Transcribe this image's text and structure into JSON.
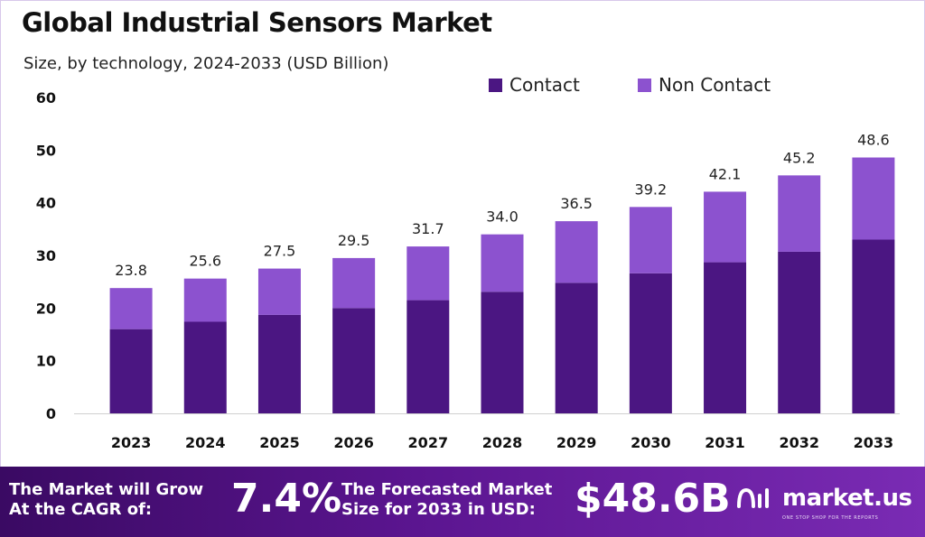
{
  "colors": {
    "contact": "#4b1682",
    "non_contact": "#8c52cf",
    "footer_start": "#3a0a63",
    "footer_end": "#7a2bb4"
  },
  "chart_data": {
    "type": "bar",
    "stacked": true,
    "title": "Global Industrial Sensors Market",
    "subtitle": "Size, by technology, 2024-2033 (USD Billion)",
    "categories": [
      "2023",
      "2024",
      "2025",
      "2026",
      "2027",
      "2028",
      "2029",
      "2030",
      "2031",
      "2032",
      "2033"
    ],
    "series": [
      {
        "name": "Contact",
        "values": [
          16.0,
          17.4,
          18.7,
          20.0,
          21.5,
          23.1,
          24.8,
          26.6,
          28.7,
          30.7,
          33.0
        ]
      },
      {
        "name": "Non Contact",
        "values": [
          7.8,
          8.2,
          8.8,
          9.5,
          10.2,
          10.9,
          11.7,
          12.6,
          13.4,
          14.5,
          15.6
        ]
      }
    ],
    "totals": [
      "23.8",
      "25.6",
      "27.5",
      "29.5",
      "31.7",
      "34.0",
      "36.5",
      "39.2",
      "42.1",
      "45.2",
      "48.6"
    ],
    "yticks": [
      0,
      10,
      20,
      30,
      40,
      50,
      60
    ],
    "ylim": [
      0,
      60
    ],
    "xlabel": "",
    "ylabel": "",
    "grid": false,
    "legend_position": "top-right"
  },
  "footer": {
    "cagr_label_line1": "The Market will Grow",
    "cagr_label_line2": "At the CAGR of:",
    "cagr_value": "7.4%",
    "forecast_label_line1": "The Forecasted Market",
    "forecast_label_line2": "Size for 2033 in USD:",
    "forecast_value": "$48.6B",
    "brand_name": "market.us",
    "brand_tagline": "ONE STOP SHOP FOR THE REPORTS",
    "brand_icon": "market-us-logo-icon"
  }
}
